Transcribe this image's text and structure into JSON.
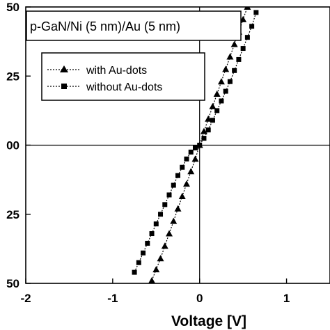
{
  "chart_data": {
    "type": "line",
    "title": "p-GaN/Ni (5 nm)/Au (5 nm)",
    "xlabel": "Voltage [V]",
    "ylabel": "",
    "xlim": [
      -2,
      1.5
    ],
    "ylim": [
      -50,
      50
    ],
    "x_ticks": [
      -2,
      -1,
      0,
      1
    ],
    "x_tick_labels": [
      "-2",
      "-1",
      "0",
      "1"
    ],
    "y_ticks": [
      50,
      25,
      0,
      -25,
      -50
    ],
    "y_tick_labels": [
      "50",
      "25",
      "00",
      "25",
      "50"
    ],
    "grid": false,
    "zero_lines": true,
    "legend_position": "top-left",
    "series": [
      {
        "name": "with Au-dots",
        "marker": "triangle",
        "color": "#000000",
        "x": [
          -0.55,
          -0.5,
          -0.45,
          -0.4,
          -0.35,
          -0.3,
          -0.25,
          -0.2,
          -0.15,
          -0.1,
          -0.05,
          0.0,
          0.05,
          0.1,
          0.15,
          0.2,
          0.25,
          0.3,
          0.35,
          0.4,
          0.45,
          0.5,
          0.55
        ],
        "y": [
          -49,
          -45,
          -41,
          -36.5,
          -32,
          -27.5,
          -23,
          -18.5,
          -14,
          -9.5,
          -5,
          0,
          5,
          9.5,
          14,
          18.5,
          23,
          27.5,
          32,
          36.5,
          41,
          45.5,
          50
        ]
      },
      {
        "name": "without Au-dots",
        "marker": "square",
        "color": "#000000",
        "x": [
          -0.75,
          -0.7,
          -0.65,
          -0.6,
          -0.55,
          -0.5,
          -0.45,
          -0.4,
          -0.35,
          -0.3,
          -0.25,
          -0.2,
          -0.15,
          -0.1,
          -0.05,
          0.0,
          0.05,
          0.1,
          0.15,
          0.2,
          0.25,
          0.3,
          0.35,
          0.4,
          0.45,
          0.5,
          0.55,
          0.6,
          0.65
        ],
        "y": [
          -46,
          -42.5,
          -39,
          -35.5,
          -32,
          -28.5,
          -25,
          -21.5,
          -18,
          -14.5,
          -11,
          -8,
          -5,
          -2.5,
          -1,
          0,
          2.5,
          5.5,
          9,
          12.5,
          16,
          19.5,
          23,
          27,
          31,
          35,
          39,
          43,
          48
        ]
      }
    ]
  }
}
